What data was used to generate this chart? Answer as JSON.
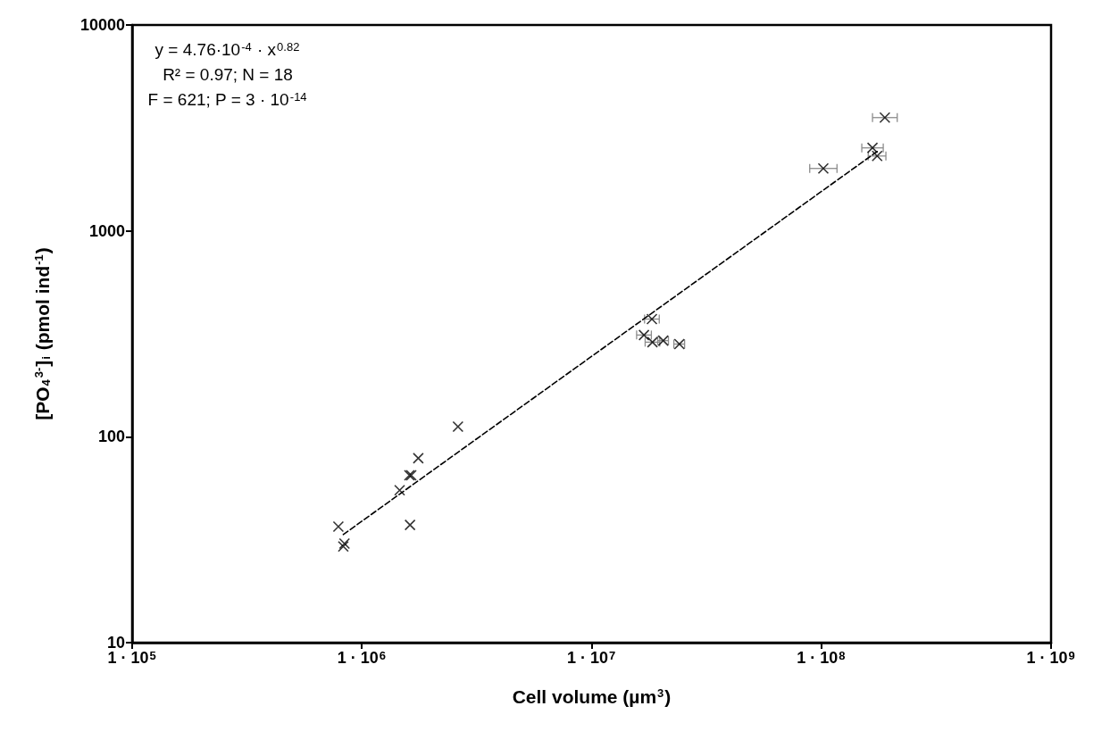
{
  "chart_data": {
    "type": "scatter",
    "xlabel": "Cell volume (µm$^{3}$)",
    "ylabel": "[PO$_{4}$$^{3-}$]$_{i}$ (pmol ind$^{-1}$)",
    "annotations": [
      "y = 4.76·10$^{-4}$ · x$^{0.82}$",
      "R² = 0.97; N = 18",
      "F = 621; P = 3 · 10$^{-14}$"
    ],
    "log": "xy",
    "xlim": [
      100000,
      1000000000
    ],
    "xticks": [
      {
        "value": 100000,
        "label": "1 · 10$^{5}$"
      },
      {
        "value": 1000000,
        "label": "1 · 10$^{6}$"
      },
      {
        "value": 10000000,
        "label": "1 · 10$^{7}$"
      },
      {
        "value": 100000000,
        "label": "1 · 10$^{8}$"
      },
      {
        "value": 1000000000,
        "label": "1 · 10$^{9}$"
      }
    ],
    "ylim": [
      10,
      10000
    ],
    "yticks": [
      10,
      100,
      1000,
      10000
    ],
    "grid": false,
    "series": [
      {
        "type": "scatter",
        "color": "#000000",
        "marker": "cross",
        "x": [
          790000,
          840000,
          830000,
          1460000,
          1610000,
          1640000,
          1760000,
          1620000,
          2620000,
          18300000,
          16900000,
          18400000,
          20500000,
          24100000,
          189000000,
          167000000,
          175000000,
          102000000
        ],
        "values": [
          36.6,
          30.3,
          29.3,
          55,
          65,
          65,
          78.7,
          37.3,
          112,
          373,
          312,
          288,
          293,
          282,
          3550,
          2530,
          2310,
          2010
        ],
        "xerrors": [
          null,
          null,
          null,
          null,
          null,
          null,
          null,
          null,
          null,
          [
            17000000,
            19700000
          ],
          [
            15700000,
            18200000
          ],
          [
            17100000,
            19800000
          ],
          [
            19400000,
            21600000
          ],
          [
            22800000,
            25400000
          ],
          [
            167000000,
            214000000
          ],
          [
            150000000,
            186000000
          ],
          [
            160000000,
            191000000
          ],
          [
            89000000,
            117000000
          ]
        ]
      },
      {
        "type": "line",
        "color": "#000000",
        "line_style": "dashed",
        "marker": "none",
        "x": [
          830000,
          175000000
        ],
        "values": [
          33.5,
          2430
        ]
      }
    ]
  }
}
